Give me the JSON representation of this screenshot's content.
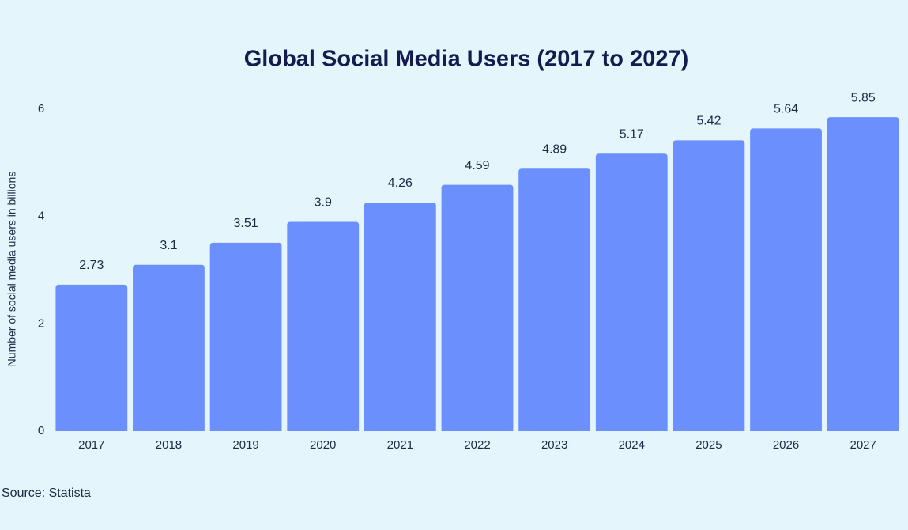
{
  "chart_data": {
    "type": "bar",
    "title": "Global Social Media Users (2017 to 2027)",
    "y_label": "Number of social media users in billions",
    "source": "Source: Statista",
    "categories": [
      "2017",
      "2018",
      "2019",
      "2020",
      "2021",
      "2022",
      "2023",
      "2024",
      "2025",
      "2026",
      "2027"
    ],
    "values": [
      2.73,
      3.1,
      3.51,
      3.9,
      4.26,
      4.59,
      4.89,
      5.17,
      5.42,
      5.64,
      5.85
    ],
    "color": "#6b8ffc",
    "ylim": [
      0,
      6
    ],
    "yticks": [
      0,
      2,
      4,
      6
    ],
    "grid": false
  }
}
